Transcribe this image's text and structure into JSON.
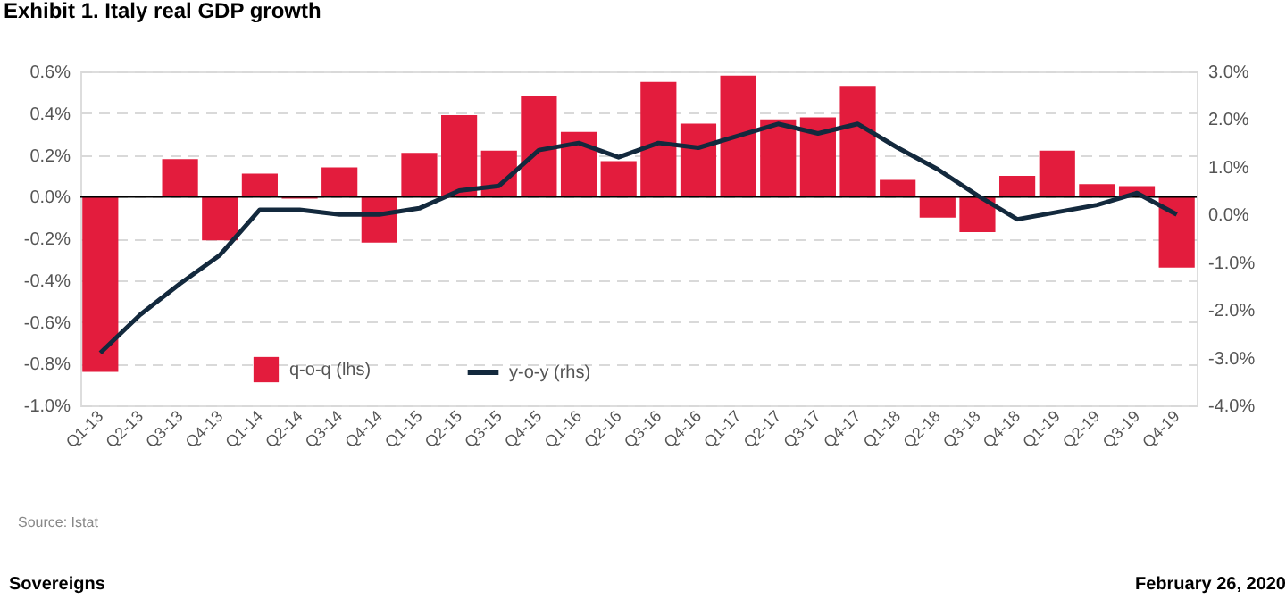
{
  "chart_data": {
    "type": "bar",
    "title": "Exhibit 1. Italy real GDP growth",
    "categories": [
      "Q1-13",
      "Q2-13",
      "Q3-13",
      "Q4-13",
      "Q1-14",
      "Q2-14",
      "Q3-14",
      "Q4-14",
      "Q1-15",
      "Q2-15",
      "Q3-15",
      "Q4-15",
      "Q1-16",
      "Q2-16",
      "Q3-16",
      "Q4-16",
      "Q1-17",
      "Q2-17",
      "Q3-17",
      "Q4-17",
      "Q1-18",
      "Q2-18",
      "Q3-18",
      "Q4-18",
      "Q1-19",
      "Q2-19",
      "Q3-19",
      "Q4-19"
    ],
    "series": [
      {
        "name": "q-o-q (lhs)",
        "color": "#e31c3d",
        "values": [
          -0.84,
          0.0,
          0.18,
          -0.21,
          0.11,
          -0.01,
          0.14,
          -0.22,
          0.21,
          0.39,
          0.22,
          0.48,
          0.31,
          0.17,
          0.55,
          0.35,
          0.58,
          0.37,
          0.38,
          0.53,
          0.08,
          -0.1,
          -0.17,
          0.1,
          0.22,
          0.06,
          0.05,
          -0.34
        ]
      },
      {
        "name": "y-o-y (rhs)",
        "type": "line",
        "axis": "y2",
        "color": "#13293d",
        "values": [
          -2.9,
          -2.1,
          -1.45,
          -0.85,
          0.1,
          0.1,
          0.0,
          0.0,
          0.13,
          0.5,
          0.6,
          1.35,
          1.5,
          1.2,
          1.5,
          1.4,
          1.65,
          1.9,
          1.7,
          1.9,
          1.4,
          0.95,
          0.4,
          -0.1,
          0.05,
          0.2,
          0.45,
          0.0
        ]
      }
    ],
    "ylim": [
      -1.0,
      0.6
    ],
    "yticks": [
      {
        "value": -1.0,
        "label": "-1.0%"
      },
      {
        "value": -0.8,
        "label": "-0.8%"
      },
      {
        "value": -0.6,
        "label": "-0.6%"
      },
      {
        "value": -0.4,
        "label": "-0.4%"
      },
      {
        "value": -0.2,
        "label": "-0.2%"
      },
      {
        "value": 0.0,
        "label": "0.0%"
      },
      {
        "value": 0.2,
        "label": "0.2%"
      },
      {
        "value": 0.4,
        "label": "0.4%"
      },
      {
        "value": 0.6,
        "label": "0.6%"
      }
    ],
    "y2lim": [
      -4.0,
      3.0
    ],
    "y2ticks": [
      {
        "value": -4.0,
        "label": "-4.0%"
      },
      {
        "value": -3.0,
        "label": "-3.0%"
      },
      {
        "value": -2.0,
        "label": "-2.0%"
      },
      {
        "value": -1.0,
        "label": "-1.0%"
      },
      {
        "value": 0.0,
        "label": "0.0%"
      },
      {
        "value": 1.0,
        "label": "1.0%"
      },
      {
        "value": 2.0,
        "label": "2.0%"
      },
      {
        "value": 3.0,
        "label": "3.0%"
      }
    ],
    "ref_lines": [
      {
        "axis": "y",
        "value": 0.0,
        "color": "#000000"
      }
    ],
    "grid": "y",
    "legend": "bottom",
    "line_style": "solid",
    "marker": "none",
    "annotations": [
      "Source: Istat",
      "Sovereigns",
      "February 26, 2020"
    ]
  }
}
